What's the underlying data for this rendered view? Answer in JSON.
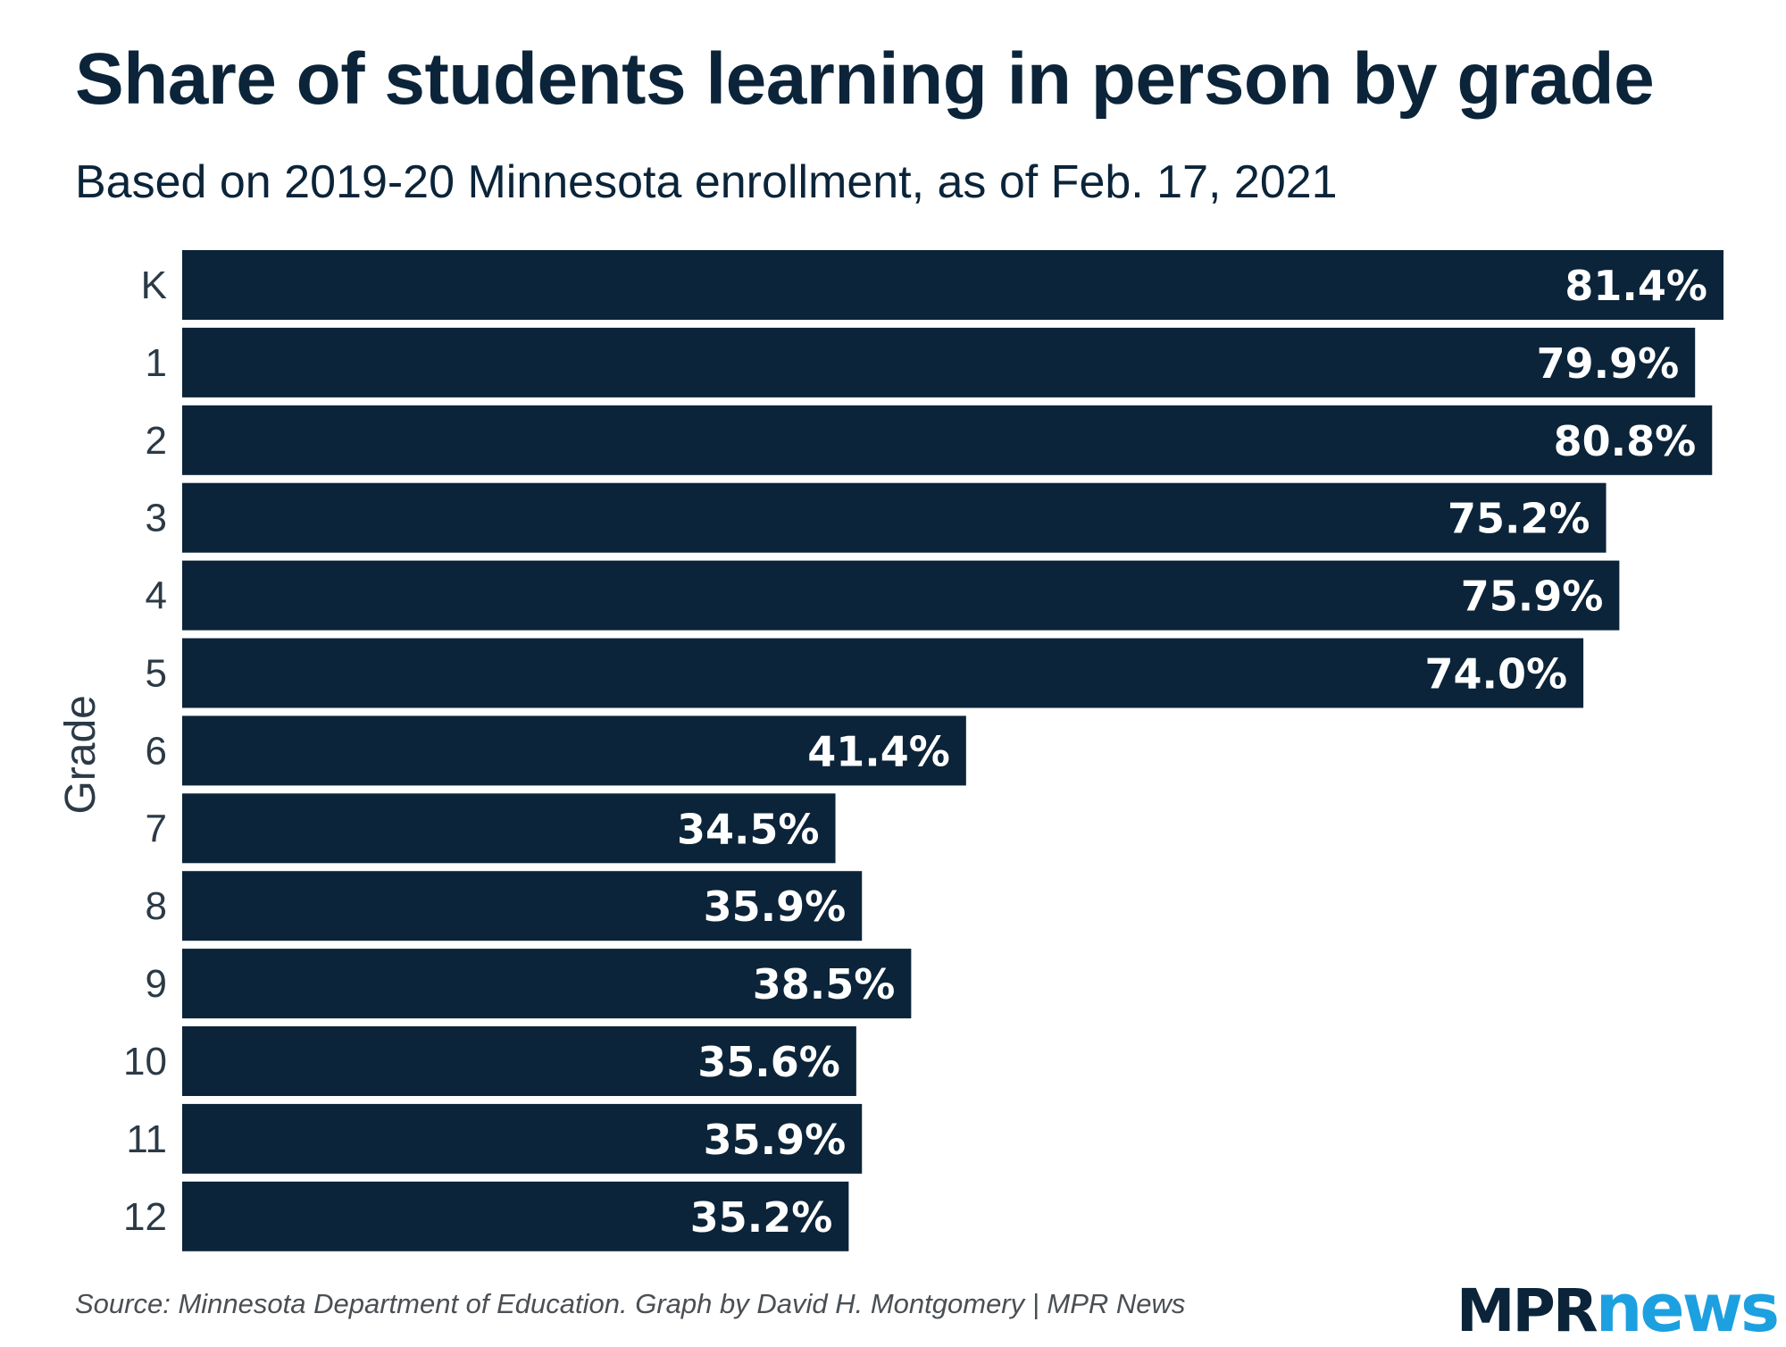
{
  "chart_data": {
    "type": "bar",
    "orientation": "horizontal",
    "title": "Share of students learning in person by grade",
    "subtitle": "Based on 2019-20 Minnesota enrollment, as of Feb. 17, 2021",
    "ylabel": "Grade",
    "xlabel": "",
    "categories": [
      "K",
      "1",
      "2",
      "3",
      "4",
      "5",
      "6",
      "7",
      "8",
      "9",
      "10",
      "11",
      "12"
    ],
    "values": [
      81.4,
      79.9,
      80.8,
      75.2,
      75.9,
      74.0,
      41.4,
      34.5,
      35.9,
      38.5,
      35.6,
      35.9,
      35.2
    ],
    "value_labels": [
      "81.4%",
      "79.9%",
      "80.8%",
      "75.2%",
      "75.9%",
      "74.0%",
      "41.4%",
      "34.5%",
      "35.9%",
      "38.5%",
      "35.6%",
      "35.9%",
      "35.2%"
    ],
    "xlim": [
      0,
      81.4
    ],
    "grid": false,
    "legend": "none",
    "bar_color": "#0b2439",
    "label_color": "#ffffff"
  },
  "footer": {
    "source": "Source: Minnesota Department of Education. Graph by David H. Montgomery | MPR News"
  },
  "logo": {
    "part1": "MPR",
    "part2": "news"
  },
  "colors": {
    "text": "#0b2439",
    "accent": "#1da0e0",
    "source_text": "#4a4f54"
  }
}
